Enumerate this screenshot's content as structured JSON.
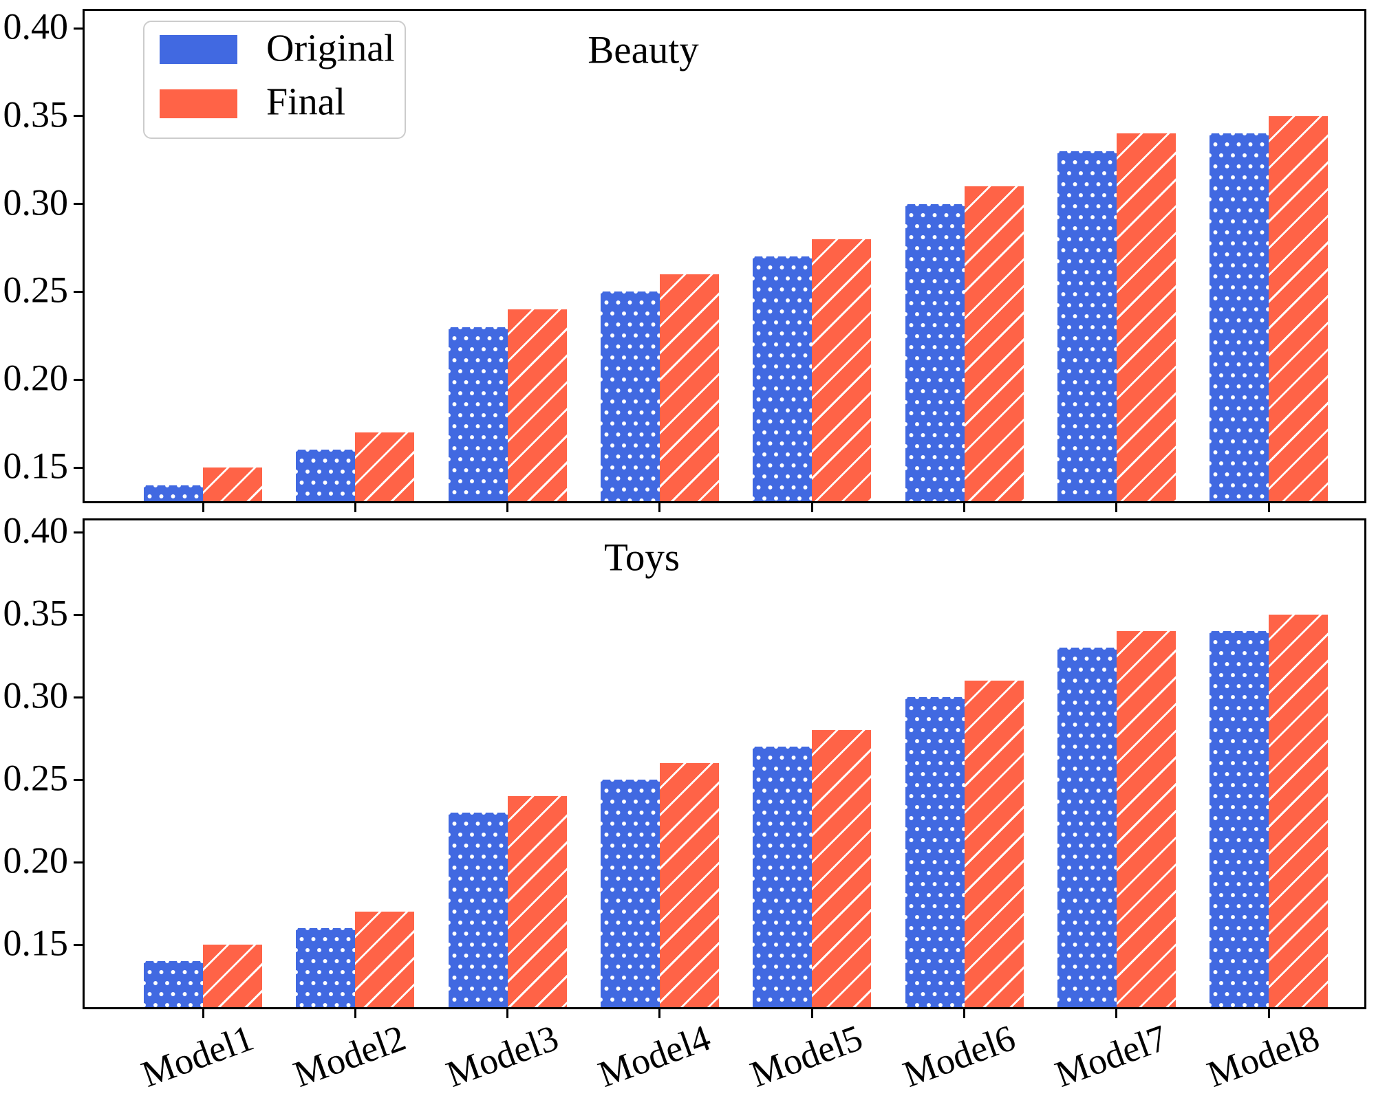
{
  "figure": {
    "background": "#ffffff"
  },
  "legend": {
    "items": [
      {
        "label": "Original",
        "color": "#4169E1",
        "pattern": "dots"
      },
      {
        "label": "Final",
        "color": "#FF6347",
        "pattern": "diagonal-hatch"
      }
    ]
  },
  "y_axis": {
    "tick_labels": [
      "0.40",
      "0.35",
      "0.30",
      "0.25",
      "0.20",
      "0.15"
    ],
    "tick_values": [
      0.4,
      0.35,
      0.3,
      0.25,
      0.2,
      0.15
    ]
  },
  "x_axis": {
    "categories": [
      "Model1",
      "Model2",
      "Model3",
      "Model4",
      "Model5",
      "Model6",
      "Model7",
      "Model8"
    ]
  },
  "chart_data": [
    {
      "type": "bar",
      "title": "Beauty",
      "categories": [
        "Model1",
        "Model2",
        "Model3",
        "Model4",
        "Model5",
        "Model6",
        "Model7",
        "Model8"
      ],
      "series": [
        {
          "name": "Original",
          "color": "#4169E1",
          "hatch": "dots",
          "values": [
            0.14,
            0.16,
            0.23,
            0.25,
            0.27,
            0.3,
            0.33,
            0.34
          ]
        },
        {
          "name": "Final",
          "color": "#FF6347",
          "hatch": "/",
          "values": [
            0.15,
            0.17,
            0.24,
            0.26,
            0.28,
            0.31,
            0.34,
            0.35
          ]
        }
      ],
      "xlabel": "",
      "ylabel": "",
      "ylim": [
        0.13,
        0.411
      ],
      "yticks": [
        0.15,
        0.2,
        0.25,
        0.3,
        0.35,
        0.4
      ],
      "grid": false,
      "legend_position": "upper left"
    },
    {
      "type": "bar",
      "title": "Toys",
      "categories": [
        "Model1",
        "Model2",
        "Model3",
        "Model4",
        "Model5",
        "Model6",
        "Model7",
        "Model8"
      ],
      "series": [
        {
          "name": "Original",
          "color": "#4169E1",
          "hatch": "dots",
          "values": [
            0.14,
            0.16,
            0.23,
            0.25,
            0.27,
            0.3,
            0.33,
            0.34
          ]
        },
        {
          "name": "Final",
          "color": "#FF6347",
          "hatch": "/",
          "values": [
            0.15,
            0.17,
            0.24,
            0.26,
            0.28,
            0.31,
            0.34,
            0.35
          ]
        }
      ],
      "xlabel": "",
      "ylabel": "",
      "ylim": [
        0.111,
        0.408
      ],
      "yticks": [
        0.15,
        0.2,
        0.25,
        0.3,
        0.35,
        0.4
      ],
      "grid": false,
      "legend_position": "none"
    }
  ]
}
